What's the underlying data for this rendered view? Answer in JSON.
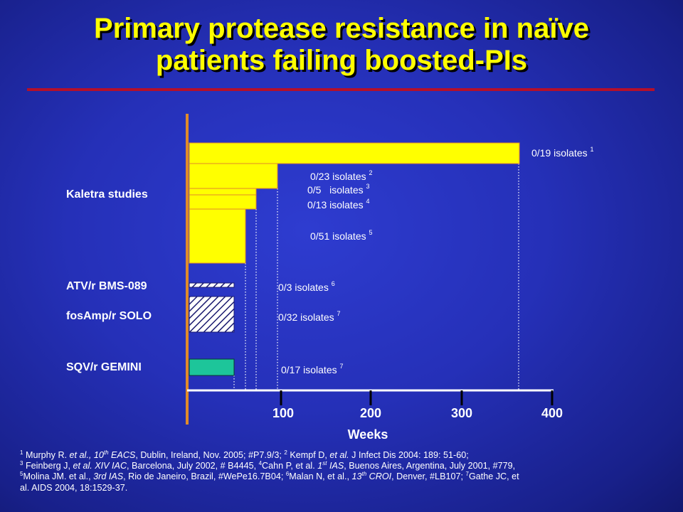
{
  "title": {
    "line1": "Primary protease resistance in naïve",
    "line2": "patients failing boosted-PIs"
  },
  "colors": {
    "background": "#2530b8",
    "title": "#ffff00",
    "rule": "#b50f2a",
    "axis": "#e08a2a",
    "kaletra_bar": "#ffff00",
    "sqv_bar": "#1dc59a",
    "hatch": "#1a1a70"
  },
  "chart_data": {
    "type": "bar",
    "orientation": "horizontal",
    "xlabel": "Weeks",
    "x_ticks": [
      100,
      200,
      300,
      400
    ],
    "xlim": [
      0,
      400
    ],
    "group_labels": [
      "Kaletra studies",
      "ATV/r BMS-089",
      "fosAmp/r SOLO",
      "SQV/r GEMINI"
    ],
    "bars": [
      {
        "group": "Kaletra studies",
        "weeks": 360,
        "n": "0/19",
        "ref": "1"
      },
      {
        "group": "Kaletra studies",
        "weeks": 96,
        "n": "0/23",
        "ref": "2"
      },
      {
        "group": "Kaletra studies",
        "weeks": 72,
        "n": "0/5",
        "ref": "3"
      },
      {
        "group": "Kaletra studies",
        "weeks": 72,
        "n": "0/13",
        "ref": "4"
      },
      {
        "group": "Kaletra studies",
        "weeks": 60,
        "n": "0/51",
        "ref": "5"
      },
      {
        "group": "ATV/r BMS-089",
        "weeks": 48,
        "n": "0/3",
        "ref": "6"
      },
      {
        "group": "fosAmp/r SOLO",
        "weeks": 48,
        "n": "0/32",
        "ref": "7"
      },
      {
        "group": "SQV/r GEMINI",
        "weeks": 48,
        "n": "0/17",
        "ref": "7"
      }
    ],
    "bar_labels": [
      {
        "text": "0/19 isolates",
        "sup": "1"
      },
      {
        "text": "0/23 isolates",
        "sup": "2"
      },
      {
        "text": "0/5   isolates",
        "sup": "3"
      },
      {
        "text": "0/13 isolates",
        "sup": "4"
      },
      {
        "text": "0/51 isolates",
        "sup": "5"
      },
      {
        "text": "0/3 isolates",
        "sup": "6"
      },
      {
        "text": "0/32 isolates",
        "sup": "7"
      },
      {
        "text": "0/17 isolates",
        "sup": "7"
      }
    ],
    "grid": false,
    "legend": "none"
  },
  "footnotes": {
    "n1": "1",
    "t1": " Murphy R. ",
    "i1": "et al., 10",
    "s1": "th",
    "i2": " EACS",
    "t2": ", Dublin, Ireland, Nov. 2005; #P7.9/3; ",
    "n2": "2",
    "t3": " Kempf D, ",
    "i3": "et al.",
    "t4": " J Infect Dis 2004: 189: 51-60;",
    "n3": "3",
    "t5": " Feinberg J, ",
    "i4": "et al.  XIV IAC",
    "t6": ", Barcelona, July 2002, # B4445, ",
    "n4": "4",
    "t7": "Cahn P, et al. ",
    "i5": "1",
    "s2": "st",
    "i6": " IAS",
    "t8": ", Buenos Aires, Argentina, July 2001, #779,",
    "n5": "5",
    "t9": "Molina JM. et al., ",
    "i7": "3rd IAS",
    "t10": ", Rio de Janeiro, Brazil, #WePe16.7B04; ",
    "n6": "6",
    "t11": "Malan N, et al., ",
    "i8": "13",
    "s3": "th",
    "i9": " CROI",
    "t12": ", Denver, #LB107; ",
    "n7": "7",
    "t13": "Gathe JC, et",
    "t14": "al. AIDS 2004, 18:1529-37."
  }
}
